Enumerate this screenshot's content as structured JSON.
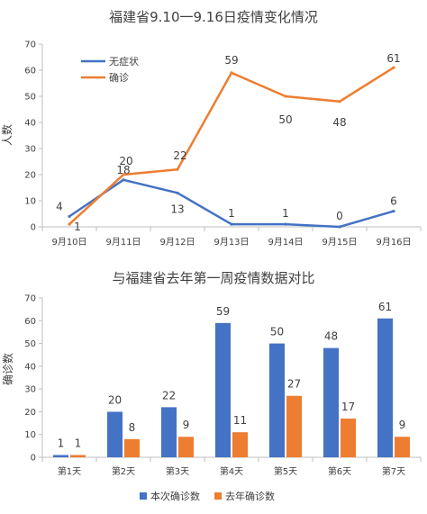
{
  "chart_data": [
    {
      "type": "line",
      "title": "福建省9.10一9.16日疫情变化情况",
      "xlabel": "",
      "ylabel": "人数",
      "categories": [
        "9月10日",
        "9月11日",
        "9月12日",
        "9月13日",
        "9月14日",
        "9月15日",
        "9月16日"
      ],
      "ylim": [
        0,
        70
      ],
      "yticks": [
        0,
        10,
        20,
        30,
        40,
        50,
        60,
        70
      ],
      "grid": false,
      "legend": "top-left",
      "series": [
        {
          "name": "无症状",
          "color": "#4472c4",
          "values": [
            4,
            18,
            13,
            1,
            1,
            0,
            6
          ],
          "labels": [
            "4",
            "18",
            "13",
            "1",
            "1",
            "0",
            "6"
          ]
        },
        {
          "name": "确诊",
          "color": "#ed7d31",
          "values": [
            1,
            20,
            22,
            59,
            50,
            48,
            61
          ],
          "labels": [
            "1",
            "20",
            "22",
            "59",
            "50",
            "48",
            "61"
          ]
        }
      ]
    },
    {
      "type": "bar",
      "title": "与福建省去年第一周疫情数据对比",
      "xlabel": "",
      "ylabel": "确诊数",
      "categories": [
        "第1天",
        "第2天",
        "第3天",
        "第4天",
        "第5天",
        "第6天",
        "第7天"
      ],
      "ylim": [
        0,
        70
      ],
      "yticks": [
        0,
        10,
        20,
        30,
        40,
        50,
        60,
        70
      ],
      "grid": false,
      "legend": "bottom",
      "series": [
        {
          "name": "本次确诊数",
          "color": "#4472c4",
          "values": [
            1,
            20,
            22,
            59,
            50,
            48,
            61
          ],
          "labels": [
            "1",
            "20",
            "22",
            "59",
            "50",
            "48",
            "61"
          ]
        },
        {
          "name": "去年确诊数",
          "color": "#ed7d31",
          "values": [
            1,
            8,
            9,
            11,
            27,
            17,
            9
          ],
          "labels": [
            "1",
            "8",
            "9",
            "11",
            "27",
            "17",
            "9"
          ]
        }
      ]
    }
  ]
}
